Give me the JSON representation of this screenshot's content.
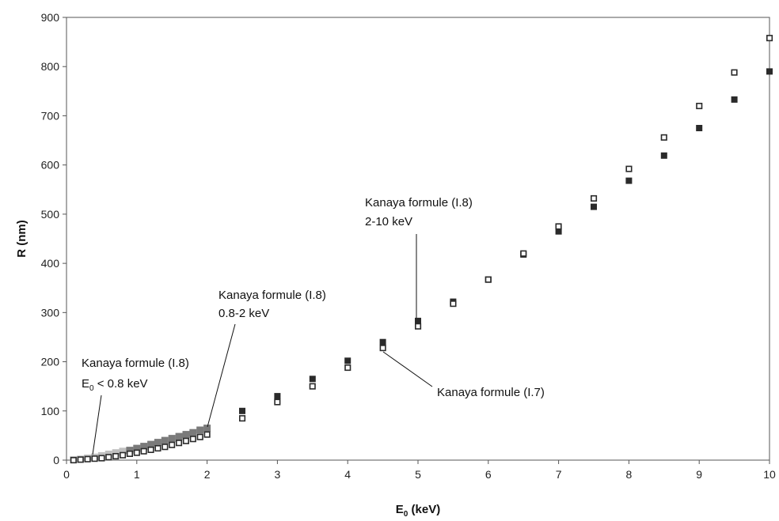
{
  "chart_data": {
    "type": "scatter",
    "xlabel": "E0 (keV)",
    "ylabel": "R (nm)",
    "xlim": [
      0,
      10
    ],
    "ylim": [
      0,
      900
    ],
    "xticks": [
      "0",
      "1",
      "2",
      "3",
      "4",
      "5",
      "6",
      "7",
      "8",
      "9",
      "10"
    ],
    "yticks": [
      "0",
      "100",
      "200",
      "300",
      "400",
      "500",
      "600",
      "700",
      "800",
      "900"
    ],
    "grid": false,
    "legend": "none",
    "colors": {
      "low_energy": "#c0c0c0",
      "mid_energy": "#7a7a7a",
      "high_energy": "#2a2a2a",
      "open_marker": "#2a2a2a"
    },
    "series": [
      {
        "marker": "filled-light-square",
        "x": [
          0.1,
          0.2,
          0.3,
          0.4,
          0.5,
          0.6,
          0.7,
          0.8
        ],
        "y": [
          1,
          2,
          4,
          6,
          9,
          12,
          15,
          18
        ]
      },
      {
        "marker": "filled-gray-square",
        "x": [
          0.9,
          1.0,
          1.1,
          1.2,
          1.3,
          1.4,
          1.5,
          1.6,
          1.7,
          1.8,
          1.9,
          2.0
        ],
        "y": [
          20,
          24,
          28,
          32,
          36,
          40,
          44,
          48,
          52,
          56,
          61,
          65
        ]
      },
      {
        "marker": "filled-dark-square",
        "x": [
          2.5,
          3.0,
          3.5,
          4.0,
          4.5,
          5.0,
          5.5,
          6.0,
          6.5,
          7.0,
          7.5,
          8.0,
          8.5,
          9.0,
          9.5,
          10.0
        ],
        "y": [
          100,
          130,
          165,
          202,
          240,
          283,
          322,
          367,
          418,
          465,
          515,
          568,
          619,
          675,
          733,
          790
        ]
      },
      {
        "marker": "open-square",
        "x": [
          0.1,
          0.2,
          0.3,
          0.4,
          0.5,
          0.6,
          0.7,
          0.8,
          0.9,
          1.0,
          1.1,
          1.2,
          1.3,
          1.4,
          1.5,
          1.6,
          1.7,
          1.8,
          1.9,
          2.0,
          2.5,
          3.0,
          3.5,
          4.0,
          4.5,
          5.0,
          5.5,
          6.0,
          6.5,
          7.0,
          7.5,
          8.0,
          8.5,
          9.0,
          9.5,
          10.0
        ],
        "y": [
          0,
          1,
          2,
          3,
          4,
          6,
          8,
          10,
          13,
          15,
          18,
          21,
          24,
          27,
          31,
          35,
          39,
          43,
          47,
          52,
          85,
          118,
          150,
          188,
          228,
          272,
          318,
          367,
          420,
          475,
          532,
          592,
          656,
          720,
          788,
          858
        ]
      }
    ],
    "annotations": [
      {
        "line1": "Kanaya formule (I.8)",
        "line2_prefix": "E",
        "line2_sub": "0",
        "line2_rest": " < 0.8 keV"
      },
      {
        "line1": "Kanaya formule (I.8)",
        "line2": "0.8-2 keV"
      },
      {
        "line1": "Kanaya formule (I.8)",
        "line2": "2-10 keV"
      },
      {
        "line1": "Kanaya formule (I.7)"
      }
    ],
    "xlabel_parts": {
      "main": "E",
      "sub": "0",
      "rest": " (keV)"
    }
  }
}
